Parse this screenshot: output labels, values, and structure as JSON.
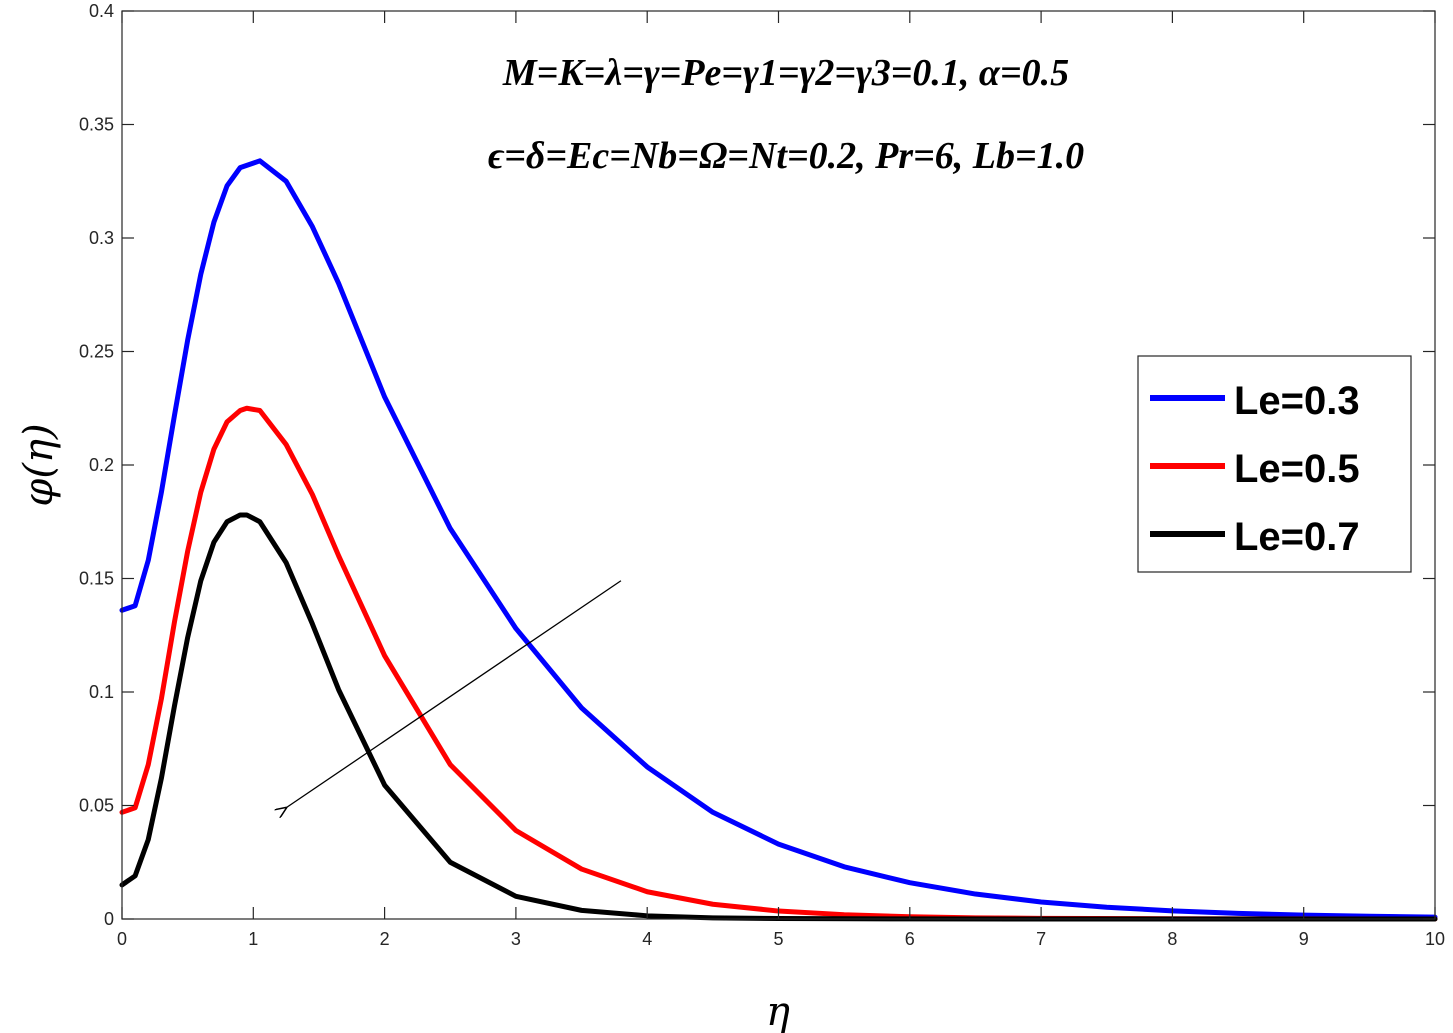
{
  "chart_data": {
    "type": "line",
    "title": "",
    "xlabel": "η",
    "ylabel": "φ(η)",
    "xlim": [
      0,
      10
    ],
    "ylim": [
      0,
      0.4
    ],
    "xticks": [
      0,
      1,
      2,
      3,
      4,
      5,
      6,
      7,
      8,
      9,
      10
    ],
    "xtick_labels": [
      "0",
      "1",
      "2",
      "3",
      "4",
      "5",
      "6",
      "7",
      "8",
      "9",
      "10"
    ],
    "yticks": [
      0,
      0.05,
      0.1,
      0.15,
      0.2,
      0.25,
      0.3,
      0.35,
      0.4
    ],
    "ytick_labels": [
      "0",
      "0.05",
      "0.1",
      "0.15",
      "0.2",
      "0.25",
      "0.3",
      "0.35",
      "0.4"
    ],
    "grid": false,
    "legend_position": "right",
    "annotations": [
      "M=K=λ=γ=Pe=γ1=γ2=γ3=0.1, α=0.5",
      "ϵ=δ=Ec=Nb=Ω=Nt=0.2, Pr=6, Lb=1.0"
    ],
    "arrow": {
      "from": [
        3.8,
        0.149
      ],
      "to": [
        1.25,
        0.049
      ],
      "meaning": "increasing Le"
    },
    "series": [
      {
        "name": "Le=0.3",
        "color": "#0000ff",
        "x": [
          0,
          0.1,
          0.2,
          0.3,
          0.4,
          0.5,
          0.6,
          0.7,
          0.8,
          0.9,
          1.0,
          1.05,
          1.25,
          1.45,
          1.65,
          2.0,
          2.5,
          3.0,
          3.5,
          4.0,
          4.5,
          5.0,
          5.5,
          6.0,
          6.5,
          7.0,
          7.5,
          8.0,
          8.5,
          9.0,
          9.5,
          10.0
        ],
        "values": [
          0.136,
          0.138,
          0.158,
          0.188,
          0.222,
          0.255,
          0.284,
          0.307,
          0.323,
          0.331,
          0.333,
          0.334,
          0.325,
          0.305,
          0.28,
          0.23,
          0.172,
          0.128,
          0.093,
          0.067,
          0.047,
          0.033,
          0.023,
          0.016,
          0.011,
          0.0075,
          0.0052,
          0.0036,
          0.0025,
          0.0017,
          0.0012,
          0.0008
        ]
      },
      {
        "name": "Le=0.5",
        "color": "#ff0000",
        "x": [
          0,
          0.1,
          0.2,
          0.3,
          0.4,
          0.5,
          0.6,
          0.7,
          0.8,
          0.9,
          0.95,
          1.05,
          1.25,
          1.45,
          1.65,
          2.0,
          2.5,
          3.0,
          3.5,
          4.0,
          4.5,
          5.0,
          5.5,
          6.0,
          6.5,
          7.0,
          8.0,
          9.0,
          10.0
        ],
        "values": [
          0.047,
          0.049,
          0.068,
          0.097,
          0.131,
          0.162,
          0.188,
          0.207,
          0.219,
          0.224,
          0.225,
          0.224,
          0.209,
          0.187,
          0.16,
          0.116,
          0.068,
          0.039,
          0.022,
          0.012,
          0.0065,
          0.0035,
          0.0019,
          0.001,
          0.0005,
          0.0003,
          0.0001,
          3e-05,
          1e-05
        ]
      },
      {
        "name": "Le=0.7",
        "color": "#000000",
        "x": [
          0,
          0.1,
          0.2,
          0.3,
          0.4,
          0.5,
          0.6,
          0.7,
          0.8,
          0.9,
          0.95,
          1.05,
          1.25,
          1.45,
          1.65,
          2.0,
          2.5,
          3.0,
          3.5,
          4.0,
          4.5,
          5.0,
          6.0,
          7.0,
          8.0,
          10.0
        ],
        "values": [
          0.015,
          0.019,
          0.035,
          0.062,
          0.094,
          0.124,
          0.149,
          0.166,
          0.175,
          0.178,
          0.178,
          0.175,
          0.157,
          0.13,
          0.101,
          0.059,
          0.025,
          0.01,
          0.0038,
          0.0014,
          0.0005,
          0.0002,
          3e-05,
          5e-06,
          1e-06,
          0.0
        ]
      }
    ]
  }
}
